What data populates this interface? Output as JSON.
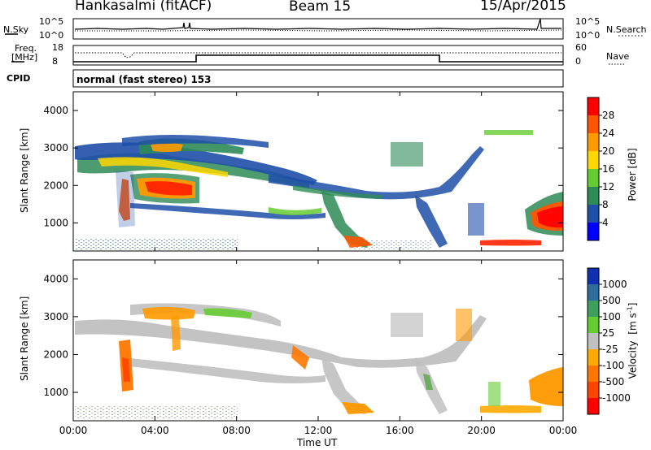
{
  "header": {
    "station": "Hankasalmi (fitACF)",
    "beam": "Beam 15",
    "date": "15/Apr/2015"
  },
  "noise_panel": {
    "left_label": "N.Sky",
    "right_label": "N.Search",
    "left_ticks": [
      "10^5",
      "10^0"
    ],
    "right_ticks": [
      "10^5",
      "10^0"
    ]
  },
  "freq_panel": {
    "left_label_1": "Freq.",
    "left_label_2": "[MHz]",
    "left_ticks": [
      "18",
      "8"
    ],
    "right_label": "Nave",
    "right_ticks": [
      "60",
      "0"
    ]
  },
  "cpid": {
    "label": "CPID",
    "program": "normal (fast stereo) 153"
  },
  "colors": {
    "scale_power": [
      "#0000ff",
      "#1f4fa8",
      "#2e8b57",
      "#66cc33",
      "#ffd700",
      "#ff9900",
      "#ff5500",
      "#ff0000"
    ],
    "scale_velocity": [
      "#1030b0",
      "#2e6e9e",
      "#3e9e5e",
      "#66cc33",
      "#c0c0c0",
      "#ffaa00",
      "#ff7700",
      "#ff4400",
      "#ff0000"
    ]
  },
  "chart_data": [
    {
      "type": "heatmap",
      "name": "power",
      "ylabel": "Slant Range [km]",
      "ylim": [
        250,
        4500
      ],
      "y_ticks": [
        "4000",
        "3000",
        "2000",
        "1000"
      ],
      "xlim": [
        "00:00",
        "24:00"
      ],
      "colorbar_label": "Power [dB]",
      "colorbar_ticks": [
        "28",
        "24",
        "20",
        "16",
        "12",
        "8",
        "4"
      ],
      "colorbar_range": [
        0,
        32
      ]
    },
    {
      "type": "heatmap",
      "name": "velocity",
      "ylabel": "Slant Range [km]",
      "ylim": [
        250,
        4500
      ],
      "y_ticks": [
        "4000",
        "3000",
        "2000",
        "1000"
      ],
      "xlabel": "Time UT",
      "x_ticks": [
        "00:00",
        "04:00",
        "08:00",
        "12:00",
        "16:00",
        "20:00",
        "00:00"
      ],
      "colorbar_label": "Velocity",
      "colorbar_unit": "[m s",
      "colorbar_unit_exp": "-1",
      "colorbar_unit_end": "]",
      "colorbar_ticks": [
        "1000",
        "500",
        "100",
        "25",
        "-25",
        "-100",
        "-500",
        "-1000"
      ]
    }
  ]
}
